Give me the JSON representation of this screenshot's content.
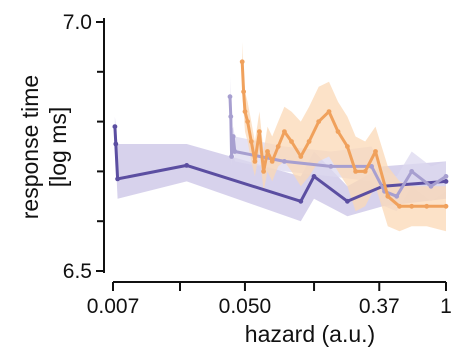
{
  "chart_data": {
    "type": "line",
    "xlabel": "hazard (a.u.)",
    "ylabel_line1": "response time",
    "ylabel_line2": "[log ms]",
    "xscale": "log",
    "xlim": [
      0.007,
      1.0
    ],
    "ylim": [
      6.5,
      7.0
    ],
    "x_ticks": [
      {
        "value": 0.007,
        "label": "0.007"
      },
      {
        "value": 0.05,
        "label": "0.050"
      },
      {
        "value": 0.37,
        "label": "0.37"
      },
      {
        "value": 1.0,
        "label": "1"
      }
    ],
    "x_minor_ticks": [
      0.019,
      0.14
    ],
    "y_ticks": [
      {
        "value": 6.5,
        "label": "6.5"
      },
      {
        "value": 7.0,
        "label": "7.0"
      }
    ],
    "y_minor_ticks": [
      6.6,
      6.7,
      6.8,
      6.9
    ],
    "grid": false,
    "series": [
      {
        "color": "#5b4ea1",
        "band_color": "#c9c3e6",
        "x": [
          0.0072,
          0.0073,
          0.0075,
          0.021,
          0.115,
          0.14,
          0.23,
          0.39,
          1.0
        ],
        "y": [
          6.79,
          6.755,
          6.685,
          6.712,
          6.64,
          6.69,
          6.64,
          6.67,
          6.68
        ],
        "lower": [
          6.755,
          6.72,
          6.645,
          6.68,
          6.6,
          6.645,
          6.61,
          6.63,
          6.645
        ],
        "upper": [
          6.81,
          6.79,
          6.755,
          6.755,
          6.69,
          6.74,
          6.67,
          6.71,
          6.72
        ]
      },
      {
        "color": "#a79fd0",
        "band_color": "#dcd8ef",
        "x": [
          0.04,
          0.0405,
          0.041,
          0.042,
          0.043,
          0.09,
          0.18,
          0.33,
          0.4,
          0.48,
          0.6,
          0.8,
          1.0
        ],
        "y": [
          6.85,
          6.81,
          6.73,
          6.77,
          6.74,
          6.72,
          6.71,
          6.71,
          6.66,
          6.65,
          6.7,
          6.67,
          6.69
        ],
        "lower": [
          6.83,
          6.79,
          6.71,
          6.75,
          6.72,
          6.7,
          6.69,
          6.68,
          6.63,
          6.62,
          6.67,
          6.64,
          6.66
        ],
        "upper": [
          6.89,
          6.83,
          6.78,
          6.79,
          6.77,
          6.75,
          6.74,
          6.75,
          6.7,
          6.69,
          6.74,
          6.71,
          6.72
        ]
      },
      {
        "color": "#f0a15c",
        "band_color": "#fbd8b5",
        "x": [
          0.048,
          0.049,
          0.05,
          0.052,
          0.055,
          0.058,
          0.062,
          0.066,
          0.07,
          0.075,
          0.082,
          0.09,
          0.1,
          0.115,
          0.13,
          0.15,
          0.175,
          0.2,
          0.23,
          0.26,
          0.3,
          0.35,
          0.42,
          0.5,
          0.6,
          0.75,
          1.0
        ],
        "y": [
          6.92,
          6.86,
          6.82,
          6.8,
          6.76,
          6.72,
          6.78,
          6.7,
          6.74,
          6.72,
          6.75,
          6.78,
          6.76,
          6.73,
          6.76,
          6.8,
          6.82,
          6.78,
          6.75,
          6.7,
          6.7,
          6.74,
          6.65,
          6.63,
          6.63,
          6.63,
          6.63
        ],
        "lower": [
          6.86,
          6.82,
          6.78,
          6.76,
          6.72,
          6.69,
          6.74,
          6.66,
          6.7,
          6.68,
          6.71,
          6.72,
          6.7,
          6.67,
          6.69,
          6.72,
          6.73,
          6.7,
          6.67,
          6.62,
          6.63,
          6.67,
          6.59,
          6.58,
          6.59,
          6.59,
          6.58
        ],
        "upper": [
          6.96,
          6.9,
          6.86,
          6.84,
          6.8,
          6.76,
          6.82,
          6.74,
          6.79,
          6.77,
          6.8,
          6.83,
          6.82,
          6.8,
          6.83,
          6.87,
          6.88,
          6.84,
          6.81,
          6.77,
          6.76,
          6.79,
          6.71,
          6.68,
          6.67,
          6.67,
          6.67
        ]
      }
    ]
  }
}
